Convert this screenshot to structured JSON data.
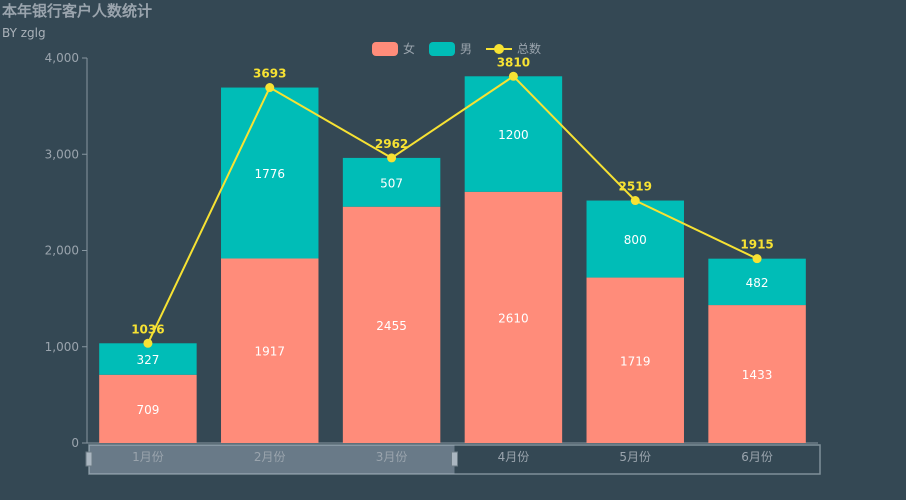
{
  "chart_data": {
    "type": "bar",
    "title": "本年银行客户人数统计",
    "subtitle": "BY zglg",
    "categories": [
      "1月份",
      "2月份",
      "3月份",
      "4月份",
      "5月份",
      "6月份"
    ],
    "series": [
      {
        "name": "女",
        "type": "bar",
        "stack": true,
        "color": "#FF8C7A",
        "values": [
          709,
          1917,
          2455,
          2610,
          1719,
          1433
        ]
      },
      {
        "name": "男",
        "type": "bar",
        "stack": true,
        "color": "#00BDB7",
        "values": [
          327,
          1776,
          507,
          1200,
          800,
          482
        ]
      },
      {
        "name": "总数",
        "type": "line",
        "color": "#F7E233",
        "values": [
          1036,
          3693,
          2962,
          3810,
          2519,
          1915
        ]
      }
    ],
    "y_ticks": [
      "0",
      "1,000",
      "2,000",
      "3,000",
      "4,000"
    ],
    "ylim": [
      0,
      4000
    ],
    "legend_position": "top-center",
    "colors": {
      "background": "#344854",
      "axis": "#8796a0",
      "tick_label": "#9aa4ad",
      "bar_label": "#ffffff",
      "line_label": "#F7E233"
    },
    "datazoom_range": [
      0,
      0.5
    ]
  }
}
